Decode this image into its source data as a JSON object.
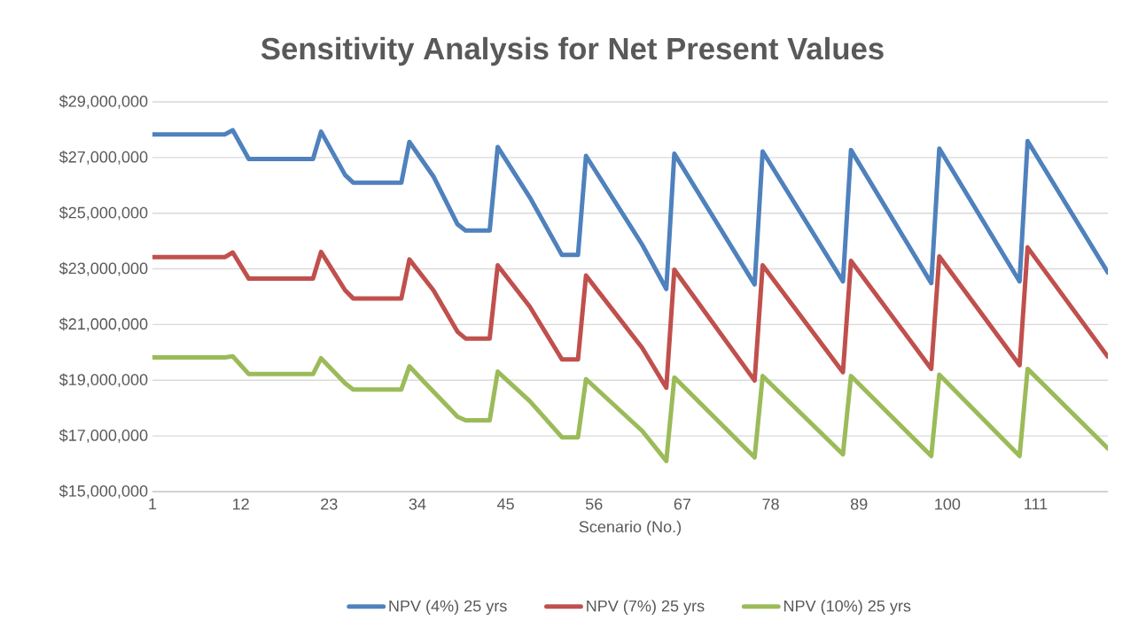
{
  "chart_data": {
    "type": "line",
    "title": "Sensitivity Analysis for Net Present Values",
    "xlabel": "Scenario (No.)",
    "xlim": [
      1,
      120
    ],
    "xticks": [
      1,
      12,
      23,
      34,
      45,
      56,
      67,
      78,
      89,
      100,
      111
    ],
    "ylim": [
      15000000,
      29000000
    ],
    "yticks": [
      {
        "value": 15000000,
        "label": "$15,000,000"
      },
      {
        "value": 17000000,
        "label": "$17,000,000"
      },
      {
        "value": 19000000,
        "label": "$19,000,000"
      },
      {
        "value": 21000000,
        "label": "$21,000,000"
      },
      {
        "value": 23000000,
        "label": "$23,000,000"
      },
      {
        "value": 25000000,
        "label": "$25,000,000"
      },
      {
        "value": 27000000,
        "label": "$27,000,000"
      },
      {
        "value": 29000000,
        "label": "$29,000,000"
      }
    ],
    "grid": "y",
    "legend": "bottom",
    "marker": "none",
    "line_style": "solid",
    "series": [
      {
        "name": "NPV (4%) 25 yrs",
        "color": "#4f81bd",
        "x": [
          1,
          10,
          11,
          13,
          21,
          22,
          25,
          26,
          32,
          33,
          36,
          39,
          40,
          43,
          44,
          48,
          52,
          54,
          55,
          62,
          65,
          66,
          76,
          77,
          87,
          88,
          98,
          99,
          109,
          110,
          120
        ],
        "values": [
          27830000,
          27830000,
          27980000,
          26950000,
          26950000,
          27930000,
          26370000,
          26100000,
          26100000,
          27560000,
          26320000,
          24600000,
          24380000,
          24380000,
          27380000,
          25570000,
          23500000,
          23500000,
          27060000,
          23870000,
          22280000,
          27140000,
          22440000,
          27220000,
          22550000,
          27270000,
          22490000,
          27320000,
          22550000,
          27590000,
          22870000
        ]
      },
      {
        "name": "NPV (7%) 25 yrs",
        "color": "#c0504d",
        "x": [
          1,
          10,
          11,
          13,
          21,
          22,
          25,
          26,
          32,
          33,
          36,
          39,
          40,
          43,
          44,
          48,
          52,
          54,
          55,
          62,
          65,
          66,
          76,
          77,
          87,
          88,
          98,
          99,
          109,
          110,
          120
        ],
        "values": [
          23420000,
          23420000,
          23590000,
          22650000,
          22650000,
          23610000,
          22230000,
          21940000,
          21940000,
          23340000,
          22230000,
          20740000,
          20500000,
          20500000,
          23130000,
          21640000,
          19750000,
          19750000,
          22760000,
          20160000,
          18730000,
          22970000,
          18990000,
          23130000,
          19290000,
          23290000,
          19410000,
          23450000,
          19540000,
          23770000,
          19840000
        ]
      },
      {
        "name": "NPV (10%) 25 yrs",
        "color": "#9bbb59",
        "x": [
          1,
          10,
          11,
          13,
          21,
          22,
          25,
          26,
          32,
          33,
          35,
          39,
          40,
          43,
          44,
          48,
          52,
          54,
          55,
          62,
          65,
          66,
          76,
          77,
          87,
          88,
          98,
          99,
          109,
          110,
          120
        ],
        "values": [
          19820000,
          19820000,
          19860000,
          19220000,
          19220000,
          19790000,
          18890000,
          18670000,
          18670000,
          19500000,
          18890000,
          17690000,
          17560000,
          17560000,
          19310000,
          18250000,
          16950000,
          16950000,
          19040000,
          17180000,
          16100000,
          19100000,
          16230000,
          19150000,
          16340000,
          19150000,
          16280000,
          19200000,
          16280000,
          19410000,
          16550000
        ]
      }
    ]
  }
}
